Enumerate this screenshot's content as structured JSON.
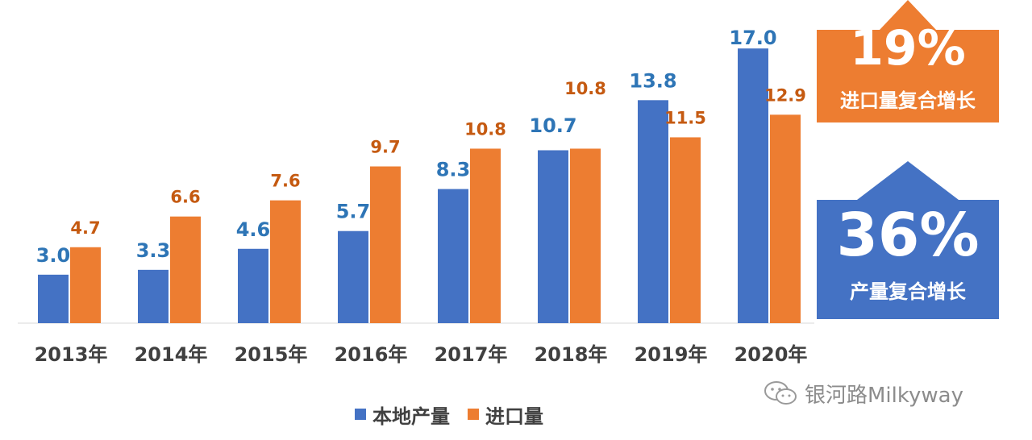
{
  "chart_data": {
    "type": "bar",
    "categories": [
      "2013年",
      "2014年",
      "2015年",
      "2016年",
      "2017年",
      "2018年",
      "2019年",
      "2020年"
    ],
    "series": [
      {
        "name": "本地产量",
        "color": "#4472C4",
        "label_color": "#2E75B6",
        "values": [
          3.0,
          3.3,
          4.6,
          5.7,
          8.3,
          10.7,
          13.8,
          17.0
        ]
      },
      {
        "name": "进口量",
        "color": "#ED7D31",
        "label_color": "#C55A11",
        "values": [
          4.7,
          6.6,
          7.6,
          9.7,
          10.8,
          10.8,
          11.5,
          12.9
        ]
      }
    ],
    "ylim": [
      0,
      20
    ],
    "value_decimals": 1,
    "grid": false,
    "legend_position": "bottom"
  },
  "callouts": {
    "import": {
      "percent": "19%",
      "label": "进口量复合增长",
      "color": "#ED7D31"
    },
    "production": {
      "percent": "36%",
      "label": "产量复合增长",
      "color": "#4472C4"
    }
  },
  "watermark": {
    "text": "银河路Milkyway",
    "icon": "wechat-icon"
  }
}
